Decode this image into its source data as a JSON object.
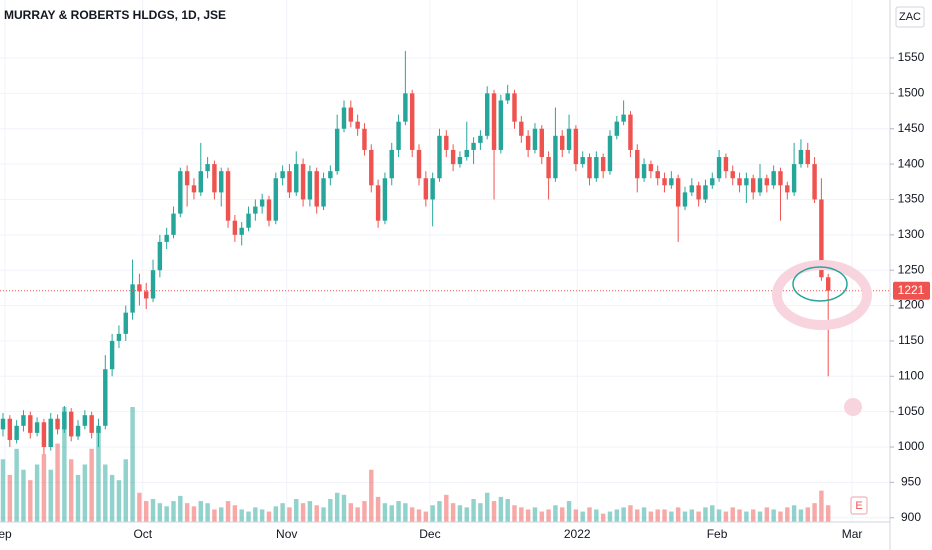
{
  "chart_data": {
    "type": "candlestick",
    "title": "MURRAY & ROBERTS HLDGS, 1D, JSE",
    "currency": "ZAC",
    "last_price": 1221,
    "up_color": "#26a69a",
    "down_color": "#ef5350",
    "grid": true,
    "ylim": [
      894,
      1632
    ],
    "yticks": [
      900,
      950,
      1000,
      1050,
      1100,
      1150,
      1200,
      1250,
      1300,
      1350,
      1400,
      1450,
      1500,
      1550
    ],
    "xlim": [
      -0.44,
      130.06
    ],
    "xticks": [
      {
        "value": 0.29,
        "label": "ep"
      },
      {
        "value": 20.5,
        "label": "Oct"
      },
      {
        "value": 41.6,
        "label": "Nov"
      },
      {
        "value": 62.6,
        "label": "Dec"
      },
      {
        "value": 84.2,
        "label": "2022"
      },
      {
        "value": 104.7,
        "label": "Feb"
      },
      {
        "value": 124.5,
        "label": "Mar"
      }
    ],
    "ohlc": [
      [
        1025,
        1048,
        1015,
        1040
      ],
      [
        1040,
        1045,
        1000,
        1010
      ],
      [
        1010,
        1038,
        1005,
        1030
      ],
      [
        1030,
        1052,
        1022,
        1045
      ],
      [
        1045,
        1050,
        1012,
        1020
      ],
      [
        1020,
        1042,
        1015,
        1035
      ],
      [
        1035,
        1040,
        990,
        1000
      ],
      [
        1000,
        1048,
        995,
        1040
      ],
      [
        1040,
        1046,
        1018,
        1025
      ],
      [
        1025,
        1058,
        1020,
        1050
      ],
      [
        1050,
        1055,
        1008,
        1015
      ],
      [
        1015,
        1038,
        1010,
        1030
      ],
      [
        1030,
        1052,
        1025,
        1045
      ],
      [
        1045,
        1050,
        1012,
        1020
      ],
      [
        1020,
        1040,
        1000,
        1030
      ],
      [
        1030,
        1130,
        1025,
        1110
      ],
      [
        1110,
        1160,
        1100,
        1150
      ],
      [
        1150,
        1172,
        1140,
        1160
      ],
      [
        1160,
        1200,
        1150,
        1190
      ],
      [
        1190,
        1265,
        1180,
        1230
      ],
      [
        1230,
        1245,
        1200,
        1220
      ],
      [
        1220,
        1232,
        1195,
        1210
      ],
      [
        1210,
        1265,
        1205,
        1250
      ],
      [
        1250,
        1300,
        1240,
        1290
      ],
      [
        1290,
        1310,
        1280,
        1300
      ],
      [
        1300,
        1340,
        1295,
        1330
      ],
      [
        1330,
        1395,
        1325,
        1390
      ],
      [
        1390,
        1398,
        1340,
        1370
      ],
      [
        1370,
        1380,
        1350,
        1360
      ],
      [
        1360,
        1430,
        1355,
        1390
      ],
      [
        1390,
        1410,
        1380,
        1400
      ],
      [
        1400,
        1405,
        1350,
        1360
      ],
      [
        1360,
        1395,
        1340,
        1390
      ],
      [
        1390,
        1395,
        1310,
        1320
      ],
      [
        1320,
        1328,
        1290,
        1300
      ],
      [
        1300,
        1318,
        1285,
        1310
      ],
      [
        1310,
        1340,
        1305,
        1330
      ],
      [
        1330,
        1350,
        1320,
        1340
      ],
      [
        1340,
        1358,
        1330,
        1350
      ],
      [
        1350,
        1355,
        1312,
        1320
      ],
      [
        1320,
        1388,
        1315,
        1380
      ],
      [
        1380,
        1398,
        1370,
        1390
      ],
      [
        1390,
        1400,
        1352,
        1360
      ],
      [
        1360,
        1418,
        1355,
        1400
      ],
      [
        1400,
        1408,
        1340,
        1350
      ],
      [
        1350,
        1398,
        1340,
        1390
      ],
      [
        1390,
        1395,
        1330,
        1340
      ],
      [
        1340,
        1388,
        1335,
        1380
      ],
      [
        1380,
        1398,
        1370,
        1390
      ],
      [
        1390,
        1470,
        1385,
        1450
      ],
      [
        1450,
        1490,
        1445,
        1480
      ],
      [
        1480,
        1490,
        1452,
        1460
      ],
      [
        1460,
        1470,
        1440,
        1450
      ],
      [
        1450,
        1458,
        1412,
        1420
      ],
      [
        1420,
        1428,
        1360,
        1370
      ],
      [
        1370,
        1378,
        1310,
        1320
      ],
      [
        1320,
        1388,
        1315,
        1380
      ],
      [
        1380,
        1430,
        1370,
        1420
      ],
      [
        1420,
        1470,
        1410,
        1460
      ],
      [
        1460,
        1560,
        1455,
        1500
      ],
      [
        1500,
        1505,
        1410,
        1420
      ],
      [
        1420,
        1428,
        1370,
        1380
      ],
      [
        1380,
        1390,
        1340,
        1350
      ],
      [
        1350,
        1388,
        1312,
        1380
      ],
      [
        1380,
        1450,
        1375,
        1440
      ],
      [
        1440,
        1448,
        1410,
        1420
      ],
      [
        1420,
        1428,
        1390,
        1400
      ],
      [
        1400,
        1418,
        1395,
        1410
      ],
      [
        1410,
        1460,
        1405,
        1420
      ],
      [
        1420,
        1438,
        1400,
        1430
      ],
      [
        1430,
        1448,
        1420,
        1440
      ],
      [
        1440,
        1510,
        1435,
        1500
      ],
      [
        1500,
        1505,
        1350,
        1420
      ],
      [
        1420,
        1498,
        1415,
        1490
      ],
      [
        1490,
        1512,
        1485,
        1500
      ],
      [
        1500,
        1505,
        1450,
        1460
      ],
      [
        1460,
        1468,
        1430,
        1440
      ],
      [
        1440,
        1448,
        1410,
        1420
      ],
      [
        1420,
        1458,
        1415,
        1450
      ],
      [
        1450,
        1455,
        1400,
        1410
      ],
      [
        1410,
        1418,
        1350,
        1380
      ],
      [
        1380,
        1480,
        1375,
        1440
      ],
      [
        1440,
        1448,
        1410,
        1420
      ],
      [
        1420,
        1470,
        1415,
        1450
      ],
      [
        1450,
        1455,
        1390,
        1400
      ],
      [
        1400,
        1418,
        1395,
        1410
      ],
      [
        1410,
        1415,
        1370,
        1380
      ],
      [
        1380,
        1418,
        1375,
        1410
      ],
      [
        1410,
        1415,
        1380,
        1390
      ],
      [
        1390,
        1448,
        1385,
        1440
      ],
      [
        1440,
        1468,
        1435,
        1460
      ],
      [
        1460,
        1490,
        1455,
        1470
      ],
      [
        1470,
        1475,
        1410,
        1420
      ],
      [
        1420,
        1428,
        1360,
        1380
      ],
      [
        1380,
        1408,
        1375,
        1400
      ],
      [
        1400,
        1405,
        1380,
        1390
      ],
      [
        1390,
        1398,
        1370,
        1380
      ],
      [
        1380,
        1388,
        1360,
        1370
      ],
      [
        1370,
        1390,
        1365,
        1380
      ],
      [
        1380,
        1385,
        1290,
        1340
      ],
      [
        1340,
        1368,
        1335,
        1360
      ],
      [
        1360,
        1380,
        1355,
        1370
      ],
      [
        1370,
        1375,
        1340,
        1350
      ],
      [
        1350,
        1378,
        1345,
        1370
      ],
      [
        1370,
        1388,
        1365,
        1380
      ],
      [
        1380,
        1420,
        1375,
        1410
      ],
      [
        1410,
        1415,
        1380,
        1390
      ],
      [
        1390,
        1398,
        1370,
        1380
      ],
      [
        1380,
        1388,
        1360,
        1370
      ],
      [
        1370,
        1388,
        1345,
        1380
      ],
      [
        1380,
        1385,
        1350,
        1360
      ],
      [
        1360,
        1400,
        1355,
        1380
      ],
      [
        1380,
        1385,
        1360,
        1370
      ],
      [
        1370,
        1398,
        1365,
        1390
      ],
      [
        1390,
        1395,
        1320,
        1370
      ],
      [
        1370,
        1375,
        1350,
        1360
      ],
      [
        1360,
        1430,
        1355,
        1400
      ],
      [
        1400,
        1435,
        1395,
        1420
      ],
      [
        1420,
        1430,
        1395,
        1400
      ],
      [
        1400,
        1410,
        1345,
        1350
      ],
      [
        1350,
        1380,
        1235,
        1240
      ],
      [
        1240,
        1245,
        1100,
        1221
      ]
    ],
    "volume": [
      60,
      45,
      70,
      50,
      40,
      55,
      65,
      50,
      75,
      110,
      60,
      45,
      55,
      70,
      90,
      55,
      45,
      40,
      60,
      110,
      28,
      20,
      22,
      18,
      15,
      20,
      25,
      18,
      15,
      20,
      18,
      12,
      14,
      20,
      16,
      12,
      10,
      14,
      12,
      10,
      15,
      18,
      14,
      22,
      18,
      20,
      16,
      14,
      22,
      28,
      26,
      18,
      14,
      20,
      50,
      24,
      18,
      16,
      20,
      18,
      14,
      12,
      10,
      16,
      20,
      26,
      18,
      16,
      14,
      22,
      18,
      28,
      20,
      24,
      22,
      16,
      14,
      12,
      14,
      10,
      12,
      16,
      14,
      20,
      12,
      10,
      14,
      12,
      8,
      10,
      12,
      14,
      16,
      12,
      14,
      10,
      12,
      12,
      10,
      14,
      10,
      12,
      10,
      14,
      16,
      12,
      10,
      14,
      12,
      10,
      12,
      10,
      14,
      12,
      10,
      14,
      16,
      12,
      14,
      18,
      30,
      16
    ]
  }
}
